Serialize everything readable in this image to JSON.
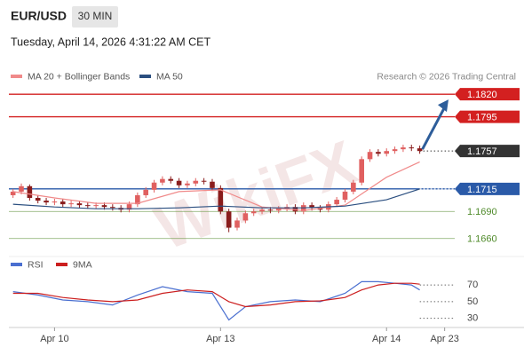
{
  "header": {
    "symbol": "EUR/USD",
    "interval": "30 MIN",
    "timestamp": "Tuesday, April 14, 2026 4:31:22 AM CET"
  },
  "watermark": "WikiFX",
  "chart_data": [
    {
      "type": "candlestick",
      "source": "Research © 2026 Trading Central",
      "open": [
        1.1708,
        1.1712,
        1.1718,
        1.1705,
        1.1702,
        1.17,
        1.1701,
        1.1698,
        1.1699,
        1.1697,
        1.1696,
        1.1697,
        1.1695,
        1.1694,
        1.1692,
        1.1698,
        1.1708,
        1.1714,
        1.1722,
        1.1726,
        1.1724,
        1.1719,
        1.1721,
        1.1724,
        1.1723,
        1.1716,
        1.169,
        1.1672,
        1.168,
        1.1688,
        1.169,
        1.1692,
        1.1691,
        1.1693,
        1.1695,
        1.169,
        1.1697,
        1.1694,
        1.1692,
        1.1698,
        1.1703,
        1.1712,
        1.1722,
        1.1748,
        1.1756,
        1.1754,
        1.1757,
        1.1759,
        1.1761,
        1.176
      ],
      "high": [
        1.1715,
        1.1721,
        1.172,
        1.1708,
        1.1705,
        1.1704,
        1.1704,
        1.1702,
        1.1702,
        1.17,
        1.17,
        1.17,
        1.1698,
        1.1697,
        1.1701,
        1.1711,
        1.1717,
        1.1725,
        1.1729,
        1.1729,
        1.1727,
        1.1724,
        1.1727,
        1.1727,
        1.1726,
        1.1719,
        1.1693,
        1.1683,
        1.1691,
        1.1693,
        1.1695,
        1.1695,
        1.1696,
        1.1698,
        1.1698,
        1.17,
        1.17,
        1.1697,
        1.1701,
        1.1706,
        1.1715,
        1.1725,
        1.1751,
        1.1759,
        1.1759,
        1.176,
        1.1762,
        1.1764,
        1.1764,
        1.1763
      ],
      "low": [
        1.1705,
        1.1709,
        1.1702,
        1.1699,
        1.1697,
        1.1697,
        1.1695,
        1.1695,
        1.1694,
        1.1693,
        1.1693,
        1.1692,
        1.1691,
        1.1689,
        1.1689,
        1.1695,
        1.1705,
        1.1711,
        1.1719,
        1.1721,
        1.1716,
        1.1716,
        1.1718,
        1.172,
        1.1713,
        1.1687,
        1.1667,
        1.1669,
        1.1677,
        1.1685,
        1.1687,
        1.1688,
        1.1688,
        1.169,
        1.1687,
        1.1687,
        1.1691,
        1.1689,
        1.1689,
        1.1695,
        1.17,
        1.1709,
        1.1719,
        1.1745,
        1.1751,
        1.1751,
        1.1754,
        1.1756,
        1.1757,
        1.1754
      ],
      "close": [
        1.1712,
        1.1718,
        1.1705,
        1.1702,
        1.17,
        1.1701,
        1.1698,
        1.1699,
        1.1697,
        1.1696,
        1.1697,
        1.1695,
        1.1694,
        1.1692,
        1.1698,
        1.1708,
        1.1714,
        1.1722,
        1.1726,
        1.1724,
        1.1719,
        1.1721,
        1.1724,
        1.1723,
        1.1716,
        1.169,
        1.1672,
        1.168,
        1.1688,
        1.169,
        1.1692,
        1.1691,
        1.1693,
        1.1695,
        1.169,
        1.1697,
        1.1694,
        1.1692,
        1.1698,
        1.1703,
        1.1712,
        1.1722,
        1.1748,
        1.1756,
        1.1754,
        1.1757,
        1.1759,
        1.1761,
        1.176,
        1.1757
      ],
      "up_color": "#e06060",
      "down_color": "#8a1c1c",
      "series": [
        {
          "name": "MA 20 + Bollinger Bands",
          "color": "#f08a8a",
          "x": [
            0,
            5,
            10,
            15,
            20,
            25,
            30,
            35,
            40,
            45,
            49
          ],
          "values": [
            1.1712,
            1.1705,
            1.1699,
            1.1699,
            1.1712,
            1.1714,
            1.1695,
            1.1691,
            1.1697,
            1.1728,
            1.1745
          ]
        },
        {
          "name": "MA 50",
          "color": "#2b4f80",
          "x": [
            0,
            5,
            10,
            15,
            20,
            25,
            30,
            35,
            40,
            45,
            49
          ],
          "values": [
            1.1698,
            1.1695,
            1.1693,
            1.1693,
            1.1694,
            1.1696,
            1.1694,
            1.1694,
            1.1696,
            1.1703,
            1.1715
          ]
        }
      ],
      "levels": [
        {
          "value": 1.182,
          "label": "1.1820",
          "color": "#d32020",
          "style": "box"
        },
        {
          "value": 1.1795,
          "color": "#d32020",
          "style": "box"
        },
        {
          "value": 1.1757,
          "color": "#333333",
          "style": "current"
        },
        {
          "value": 1.1715,
          "color": "#2a5aa8",
          "style": "box"
        },
        {
          "value": 1.169,
          "label": "1.1690",
          "color": "#4f8a2a",
          "style": "plain"
        },
        {
          "value": 1.166,
          "label": "1.1660",
          "color": "#4f8a2a",
          "style": "plain"
        }
      ],
      "ylim": [
        1.1644,
        1.1831
      ],
      "xlim": [
        -0.5,
        53
      ],
      "xticks": [
        {
          "value": 5,
          "label": "Apr 10"
        },
        {
          "value": 25,
          "label": "Apr 13"
        },
        {
          "value": 45,
          "label": "Apr 14"
        },
        {
          "value": 52,
          "label": "Apr 23"
        }
      ]
    },
    {
      "type": "line",
      "series": [
        {
          "name": "RSI",
          "color": "#4a6fd0",
          "x": [
            0,
            3,
            6,
            9,
            12,
            15,
            18,
            21,
            24,
            26,
            28,
            31,
            34,
            37,
            40,
            42,
            44,
            46,
            48,
            49
          ],
          "values": [
            62,
            58,
            52,
            50,
            46,
            58,
            68,
            62,
            60,
            28,
            44,
            50,
            52,
            50,
            60,
            74,
            74,
            72,
            70,
            64
          ]
        },
        {
          "name": "9MA",
          "color": "#cc1f1f",
          "x": [
            0,
            3,
            6,
            9,
            12,
            15,
            18,
            21,
            24,
            26,
            28,
            31,
            34,
            37,
            40,
            42,
            44,
            46,
            48,
            49
          ],
          "values": [
            60,
            60,
            55,
            52,
            50,
            52,
            60,
            64,
            62,
            50,
            44,
            46,
            50,
            51,
            55,
            64,
            70,
            72,
            72,
            71
          ]
        }
      ],
      "ylim": [
        19,
        101
      ],
      "yticks": [
        70,
        50,
        30
      ],
      "xlim": [
        -0.5,
        53
      ]
    }
  ]
}
